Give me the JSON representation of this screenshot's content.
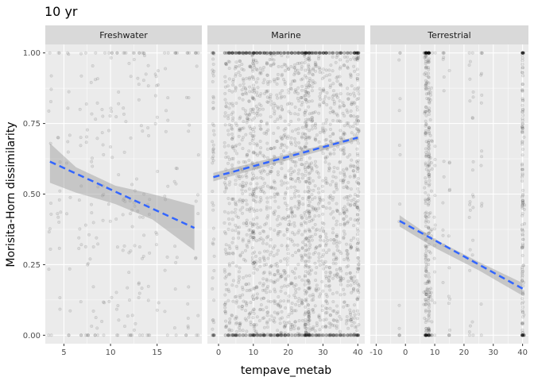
{
  "chart_data": {
    "type": "scatter",
    "title": "10 yr",
    "xlabel": "tempave_metab",
    "ylabel": "Morisita-Horn dissimilarity",
    "ylim": [
      -0.03,
      1.03
    ],
    "yticks": [
      0.0,
      0.25,
      0.5,
      0.75,
      1.0
    ],
    "ytick_labels": [
      "0.00",
      "0.25",
      "0.50",
      "0.75",
      "1.00"
    ],
    "grid": true,
    "facets": [
      {
        "name": "Freshwater",
        "xlim": [
          3,
          19.8
        ],
        "xticks": [
          5,
          10,
          15
        ],
        "xtick_labels": [
          "5",
          "10",
          "15"
        ],
        "point_columns": [
          3.5,
          4.5,
          5.5,
          6.8,
          7.5,
          8,
          8.5,
          9.2,
          10,
          10.8,
          11.5,
          12,
          12.5,
          13,
          13.5,
          14,
          15,
          16,
          17,
          18.3,
          19.3
        ],
        "trend": {
          "x": [
            3.5,
            19
          ],
          "y": [
            0.615,
            0.38
          ]
        },
        "ci_upper": {
          "x": [
            3.5,
            6.3,
            10.5,
            14.5,
            19
          ],
          "y": [
            0.68,
            0.595,
            0.53,
            0.5,
            0.46
          ]
        },
        "ci_lower": {
          "x": [
            3.5,
            6.3,
            10.5,
            14.5,
            19
          ],
          "y": [
            0.54,
            0.505,
            0.465,
            0.41,
            0.3
          ]
        }
      },
      {
        "name": "Marine",
        "xlim": [
          -3.2,
          42
        ],
        "xticks": [
          0,
          10,
          20,
          30,
          40
        ],
        "xtick_labels": [
          "0",
          "10",
          "20",
          "30",
          "40"
        ],
        "point_columns": [
          -1.5,
          2,
          3,
          4,
          5,
          6,
          7,
          8,
          9,
          10,
          11,
          12,
          13,
          14,
          15,
          16,
          17,
          18,
          19,
          20,
          21,
          22,
          23,
          24,
          25,
          26,
          27,
          28,
          29,
          30,
          31,
          32,
          33,
          34,
          35,
          36,
          37,
          38,
          39,
          40
        ],
        "dense_columns": [
          9.5,
          10,
          10.5,
          25,
          25.5,
          26,
          40
        ],
        "trend": {
          "x": [
            -1.5,
            40
          ],
          "y": [
            0.56,
            0.7
          ]
        },
        "ci_upper": {
          "x": [
            -1.5,
            40
          ],
          "y": [
            0.575,
            0.705
          ]
        },
        "ci_lower": {
          "x": [
            -1.5,
            40
          ],
          "y": [
            0.545,
            0.69
          ]
        }
      },
      {
        "name": "Terrestrial",
        "xlim": [
          -12,
          42
        ],
        "xticks": [
          -10,
          0,
          10,
          20,
          30,
          40
        ],
        "xtick_labels": [
          "-10",
          "0",
          "10",
          "20",
          "30",
          "40"
        ],
        "point_columns": [
          -2,
          6.5,
          7,
          7.5,
          8,
          8.5,
          9,
          10,
          13,
          15,
          22,
          23,
          26,
          40,
          40.5
        ],
        "dense_columns": [
          7,
          8,
          40
        ],
        "trend": {
          "x": [
            -2,
            40
          ],
          "y": [
            0.405,
            0.165
          ]
        },
        "ci_upper": {
          "x": [
            -2,
            10,
            25,
            40
          ],
          "y": [
            0.425,
            0.34,
            0.26,
            0.185
          ]
        },
        "ci_lower": {
          "x": [
            -2,
            10,
            25,
            40
          ],
          "y": [
            0.385,
            0.31,
            0.23,
            0.14
          ]
        }
      }
    ],
    "colors": {
      "panel": "#ebebeb",
      "strip": "#d9d9d9",
      "grid_major": "#ffffff",
      "point": "#000000",
      "trend": "#3366ff",
      "ci": "#999999"
    }
  }
}
